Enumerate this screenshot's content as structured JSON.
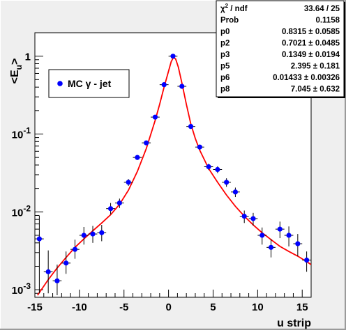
{
  "chart_data": {
    "type": "scatter",
    "xlabel": "u strip",
    "ylabel_main": "<E",
    "ylabel_sub": "u",
    "ylabel_close": ">",
    "xlim": [
      -15,
      16
    ],
    "ylim": [
      0.0008,
      2.0
    ],
    "yscale": "log",
    "grid": false,
    "legend_position": "top-left",
    "x_ticks": [
      -15,
      -10,
      -5,
      0,
      5,
      10,
      15
    ],
    "x_tick_labels": [
      "-15",
      "-10",
      "-5",
      "0",
      "5",
      "10",
      "15"
    ],
    "y_ticks": [
      {
        "value": 1,
        "base": "1",
        "exp": ""
      },
      {
        "value": 0.1,
        "base": "10",
        "exp": "-1"
      },
      {
        "value": 0.01,
        "base": "10",
        "exp": "-2"
      },
      {
        "value": 0.001,
        "base": "10",
        "exp": "-3"
      }
    ],
    "series": [
      {
        "name": "MC γ - jet",
        "color": "#0000ff",
        "points": [
          {
            "x": -14.5,
            "y": 0.0045,
            "ylo": 0.0009,
            "yhi": 0.009
          },
          {
            "x": -13.5,
            "y": 0.0017,
            "ylo": 0.0009,
            "yhi": 0.0032
          },
          {
            "x": -12.5,
            "y": 0.0013,
            "ylo": 0.00085,
            "yhi": 0.0021
          },
          {
            "x": -11.5,
            "y": 0.0022,
            "ylo": 0.0016,
            "yhi": 0.0031
          },
          {
            "x": -10.5,
            "y": 0.0033,
            "ylo": 0.0025,
            "yhi": 0.0044
          },
          {
            "x": -9.5,
            "y": 0.005,
            "ylo": 0.0038,
            "yhi": 0.0064
          },
          {
            "x": -8.5,
            "y": 0.0052,
            "ylo": 0.004,
            "yhi": 0.0066
          },
          {
            "x": -7.5,
            "y": 0.0054,
            "ylo": 0.0042,
            "yhi": 0.0068
          },
          {
            "x": -6.5,
            "y": 0.011,
            "ylo": 0.0093,
            "yhi": 0.013
          },
          {
            "x": -5.5,
            "y": 0.013,
            "ylo": 0.0112,
            "yhi": 0.0148
          },
          {
            "x": -4.5,
            "y": 0.024,
            "ylo": 0.0216,
            "yhi": 0.0264
          },
          {
            "x": -3.5,
            "y": 0.05,
            "ylo": 0.0465,
            "yhi": 0.0535
          },
          {
            "x": -2.5,
            "y": 0.077,
            "ylo": 0.072,
            "yhi": 0.082
          },
          {
            "x": -1.5,
            "y": 0.165,
            "ylo": 0.155,
            "yhi": 0.175
          },
          {
            "x": -0.5,
            "y": 0.43,
            "ylo": 0.41,
            "yhi": 0.45
          },
          {
            "x": 0.5,
            "y": 1.0,
            "ylo": 0.97,
            "yhi": 1.03
          },
          {
            "x": 1.5,
            "y": 0.41,
            "ylo": 0.39,
            "yhi": 0.43
          },
          {
            "x": 2.5,
            "y": 0.125,
            "ylo": 0.117,
            "yhi": 0.133
          },
          {
            "x": 3.5,
            "y": 0.068,
            "ylo": 0.063,
            "yhi": 0.073
          },
          {
            "x": 4.5,
            "y": 0.038,
            "ylo": 0.0345,
            "yhi": 0.0415
          },
          {
            "x": 5.5,
            "y": 0.035,
            "ylo": 0.0315,
            "yhi": 0.0385
          },
          {
            "x": 6.5,
            "y": 0.024,
            "ylo": 0.021,
            "yhi": 0.027
          },
          {
            "x": 7.5,
            "y": 0.018,
            "ylo": 0.0155,
            "yhi": 0.0205
          },
          {
            "x": 8.5,
            "y": 0.0088,
            "ylo": 0.0072,
            "yhi": 0.0104
          },
          {
            "x": 9.5,
            "y": 0.0082,
            "ylo": 0.0067,
            "yhi": 0.0097
          },
          {
            "x": 10.5,
            "y": 0.005,
            "ylo": 0.0038,
            "yhi": 0.0063
          },
          {
            "x": 11.5,
            "y": 0.0035,
            "ylo": 0.0026,
            "yhi": 0.0045
          },
          {
            "x": 12.5,
            "y": 0.006,
            "ylo": 0.0046,
            "yhi": 0.0075
          },
          {
            "x": 13.5,
            "y": 0.005,
            "ylo": 0.0036,
            "yhi": 0.0065
          },
          {
            "x": 14.5,
            "y": 0.0039,
            "ylo": 0.0027,
            "yhi": 0.0052
          },
          {
            "x": 15.5,
            "y": 0.0024,
            "ylo": 0.0017,
            "yhi": 0.0031
          }
        ]
      }
    ],
    "fit": {
      "color": "#ff0000",
      "curve": [
        [
          -14.7,
          0.00085
        ],
        [
          -13.5,
          0.00135
        ],
        [
          -12.5,
          0.0019
        ],
        [
          -11.5,
          0.0026
        ],
        [
          -10.5,
          0.0035
        ],
        [
          -9.5,
          0.0045
        ],
        [
          -8.5,
          0.0057
        ],
        [
          -7.5,
          0.0072
        ],
        [
          -6.5,
          0.0092
        ],
        [
          -5.5,
          0.0125
        ],
        [
          -4.5,
          0.019
        ],
        [
          -3.5,
          0.033
        ],
        [
          -2.5,
          0.065
        ],
        [
          -1.5,
          0.15
        ],
        [
          -1.0,
          0.24
        ],
        [
          -0.5,
          0.4
        ],
        [
          0.0,
          0.64
        ],
        [
          0.3,
          0.85
        ],
        [
          0.55,
          0.96
        ],
        [
          0.8,
          0.92
        ],
        [
          1.1,
          0.72
        ],
        [
          1.5,
          0.45
        ],
        [
          2.0,
          0.24
        ],
        [
          2.5,
          0.135
        ],
        [
          3.0,
          0.088
        ],
        [
          3.5,
          0.062
        ],
        [
          4.5,
          0.036
        ],
        [
          5.5,
          0.024
        ],
        [
          6.5,
          0.0165
        ],
        [
          7.5,
          0.0118
        ],
        [
          8.5,
          0.0088
        ],
        [
          9.5,
          0.0068
        ],
        [
          10.5,
          0.0054
        ],
        [
          11.5,
          0.0044
        ],
        [
          12.5,
          0.0036
        ],
        [
          13.5,
          0.0031
        ],
        [
          14.5,
          0.0027
        ],
        [
          15.5,
          0.0023
        ],
        [
          16.0,
          0.0021
        ]
      ]
    }
  },
  "stats_box": [
    {
      "label": "χ",
      "label_sup": "2",
      "label_rest": " / ndf",
      "value": "33.64 / 25"
    },
    {
      "label": "Prob",
      "label_sup": "",
      "label_rest": "",
      "value": "0.1158"
    },
    {
      "label": "p0",
      "label_sup": "",
      "label_rest": "",
      "value": "0.8315 ± 0.0585"
    },
    {
      "label": "p2",
      "label_sup": "",
      "label_rest": "",
      "value": "0.7021 ± 0.0485"
    },
    {
      "label": "p3",
      "label_sup": "",
      "label_rest": "",
      "value": "0.1349 ± 0.0194"
    },
    {
      "label": "p5",
      "label_sup": "",
      "label_rest": "",
      "value": "2.395 ± 0.181"
    },
    {
      "label": "p6",
      "label_sup": "",
      "label_rest": "",
      "value": "0.01433 ± 0.00326"
    },
    {
      "label": "p8",
      "label_sup": "",
      "label_rest": "",
      "value": "7.045 ± 0.632"
    }
  ],
  "legend": {
    "label": "MC γ - jet"
  }
}
